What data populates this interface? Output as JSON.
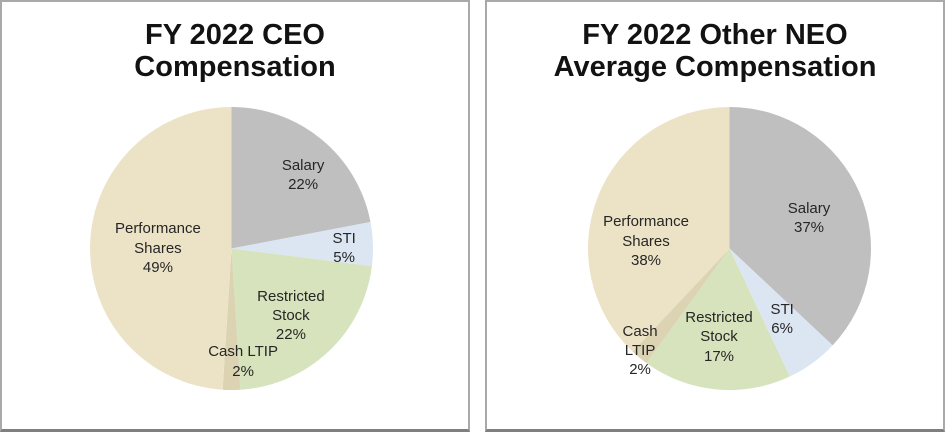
{
  "page": {
    "background_color": "#ffffff",
    "panel_border_color": "#a9a9a9",
    "panel_bottom_border_color": "#7f7f7f",
    "label_text_color": "#262626",
    "title_text_color": "#121212"
  },
  "chart_data": [
    {
      "type": "pie",
      "title": "FY 2022 CEO Compensation",
      "title_display": "FY 2022 CEO\nCompensation",
      "direction": "clockwise",
      "start_angle_deg": 0,
      "legend": "none",
      "slices": [
        {
          "label": "Salary",
          "value": 22,
          "display_lines": [
            "Salary",
            "22%"
          ],
          "color": "#bfbfbf",
          "label_x_pct": 75.3,
          "label_y_pct": 23.9
        },
        {
          "label": "STI",
          "value": 5,
          "display_lines": [
            "STI",
            "5%"
          ],
          "color": "#dce6f2",
          "label_x_pct": 89.8,
          "label_y_pct": 49.7
        },
        {
          "label": "Restricted Stock",
          "value": 22,
          "display_lines": [
            "Restricted",
            "Stock",
            "22%"
          ],
          "color": "#d6e3bc",
          "label_x_pct": 71.0,
          "label_y_pct": 73.7
        },
        {
          "label": "Cash LTIP",
          "value": 2,
          "display_lines": [
            "Cash LTIP",
            "2%"
          ],
          "color": "#dbd3b2",
          "label_x_pct": 54.1,
          "label_y_pct": 89.9
        },
        {
          "label": "Performance Shares",
          "value": 49,
          "display_lines": [
            "Performance",
            "Shares",
            "49%"
          ],
          "color": "#ece3c7",
          "label_x_pct": 24.0,
          "label_y_pct": 50.0
        }
      ]
    },
    {
      "type": "pie",
      "title": "FY 2022 Other NEO Average Compensation",
      "title_display": "FY 2022 Other NEO\nAverage Compensation",
      "direction": "clockwise",
      "start_angle_deg": 0,
      "legend": "none",
      "slices": [
        {
          "label": "Salary",
          "value": 37,
          "display_lines": [
            "Salary",
            "37%"
          ],
          "color": "#bfbfbf",
          "label_x_pct": 78.1,
          "label_y_pct": 39.2
        },
        {
          "label": "STI",
          "value": 6,
          "display_lines": [
            "STI",
            "6%"
          ],
          "color": "#dce6f2",
          "label_x_pct": 68.6,
          "label_y_pct": 74.9
        },
        {
          "label": "Restricted Stock",
          "value": 17,
          "display_lines": [
            "Restricted",
            "Stock",
            "17%"
          ],
          "color": "#d6e3bc",
          "label_x_pct": 46.3,
          "label_y_pct": 81.4
        },
        {
          "label": "Cash LTIP",
          "value": 2,
          "display_lines": [
            "Cash",
            "LTIP",
            "2%"
          ],
          "color": "#dbd3b2",
          "label_x_pct": 18.4,
          "label_y_pct": 86.1
        },
        {
          "label": "Performance Shares",
          "value": 38,
          "display_lines": [
            "Performance",
            "Shares",
            "38%"
          ],
          "color": "#ece3c7",
          "label_x_pct": 20.5,
          "label_y_pct": 47.5
        }
      ]
    }
  ]
}
